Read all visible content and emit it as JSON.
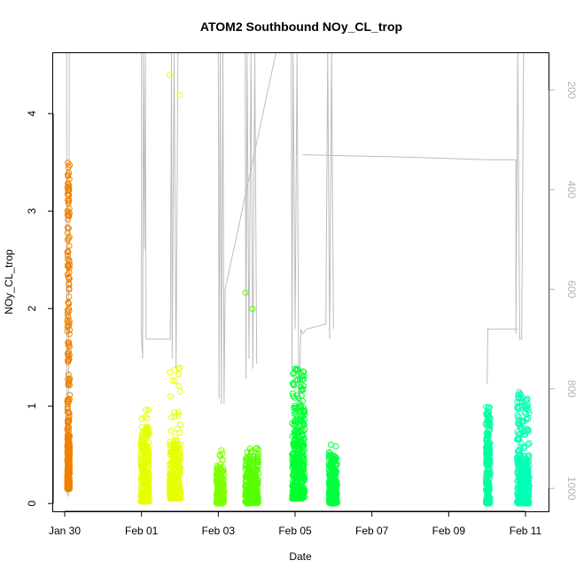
{
  "chart_data": {
    "type": "scatter",
    "title": "ATOM2 Southbound NOy_CL_trop",
    "xlabel": "Date",
    "ylabel": "NOy_CL_trop",
    "x_unit": "days since Jan 28 00:00",
    "xlim": [
      1.7,
      14.6
    ],
    "ylim": [
      -0.08,
      4.62
    ],
    "y_ticks": [
      "0",
      "1",
      "2",
      "3",
      "4"
    ],
    "x_ticks": [
      {
        "label": "Jan 30",
        "x": 2
      },
      {
        "label": "Feb 01",
        "x": 4
      },
      {
        "label": "Feb 03",
        "x": 6
      },
      {
        "label": "Feb 05",
        "x": 8
      },
      {
        "label": "Feb 07",
        "x": 10
      },
      {
        "label": "Feb 09",
        "x": 12
      },
      {
        "label": "Feb 11",
        "x": 14
      }
    ],
    "y2_axis": {
      "label": "",
      "reversed": true,
      "lim": [
        1046,
        126
      ],
      "ticks": [
        "200",
        "400",
        "600",
        "800",
        "1000"
      ]
    },
    "series": [
      {
        "name": "",
        "color": "#f08000",
        "x_start": 2.07,
        "x_end": 2.13,
        "clusters": [
          [
            0.15,
            0.6,
            260
          ],
          [
            0.5,
            3.55,
            180
          ]
        ]
      },
      {
        "name": "",
        "color": "#e6ff00",
        "x_start": 3.98,
        "x_end": 4.2,
        "clusters": [
          [
            0.02,
            0.8,
            260
          ],
          [
            0.6,
            1.05,
            14
          ]
        ]
      },
      {
        "name": "",
        "color": "#e6ff00",
        "x_start": 4.73,
        "x_end": 5.02,
        "clusters": [
          [
            0.05,
            0.6,
            220
          ],
          [
            0.6,
            1.4,
            30
          ],
          [
            4.05,
            4.45,
            2
          ]
        ]
      },
      {
        "name": "",
        "color": "#7fff00",
        "x_start": 5.95,
        "x_end": 6.15,
        "clusters": [
          [
            0.0,
            0.35,
            200
          ],
          [
            0.35,
            0.55,
            16
          ]
        ]
      },
      {
        "name": "",
        "color": "#55ff00",
        "x_start": 6.7,
        "x_end": 7.05,
        "clusters": [
          [
            0.0,
            0.45,
            230
          ],
          [
            0.45,
            0.62,
            20
          ],
          [
            1.8,
            2.5,
            2
          ]
        ]
      },
      {
        "name": "",
        "color": "#00ff30",
        "x_start": 7.92,
        "x_end": 8.25,
        "clusters": [
          [
            0.05,
            0.6,
            240
          ],
          [
            0.6,
            1.39,
            120
          ]
        ]
      },
      {
        "name": "",
        "color": "#00ff40",
        "x_start": 8.88,
        "x_end": 9.1,
        "clusters": [
          [
            0.0,
            0.5,
            200
          ],
          [
            0.5,
            0.62,
            4
          ]
        ]
      },
      {
        "name": "",
        "color": "#00ffa0",
        "x_start": 12.97,
        "x_end": 13.08,
        "clusters": [
          [
            0.0,
            0.4,
            90
          ],
          [
            0.4,
            1.0,
            120
          ]
        ]
      },
      {
        "name": "",
        "color": "#00ffb4",
        "x_start": 13.78,
        "x_end": 14.1,
        "clusters": [
          [
            0.0,
            0.3,
            180
          ],
          [
            0.3,
            1.15,
            140
          ]
        ]
      }
    ],
    "altitude_trace": {
      "color": "#bdbdbd",
      "segments": [
        [
          [
            2.05,
            126
          ],
          [
            2.05,
            220
          ],
          [
            2.06,
            1010
          ],
          [
            2.1,
            1015
          ],
          [
            2.12,
            126
          ]
        ],
        [
          [
            4.0,
            126
          ],
          [
            4.0,
            700
          ],
          [
            4.03,
            740
          ],
          [
            4.05,
            126
          ],
          [
            4.08,
            520
          ],
          [
            4.1,
            126
          ],
          [
            4.12,
            700
          ],
          [
            4.5,
            700
          ],
          [
            4.75,
            700
          ],
          [
            4.78,
            126
          ],
          [
            4.8,
            740
          ],
          [
            4.85,
            126
          ],
          [
            4.9,
            760
          ],
          [
            4.95,
            126
          ],
          [
            5.0,
            126
          ]
        ],
        [
          [
            6.0,
            126
          ],
          [
            6.02,
            820
          ],
          [
            6.05,
            126
          ],
          [
            6.08,
            830
          ],
          [
            6.12,
            126
          ],
          [
            6.15,
            830
          ],
          [
            6.18,
            600
          ],
          [
            7.5,
            126
          ]
        ],
        [
          [
            6.7,
            126
          ],
          [
            6.72,
            780
          ],
          [
            6.75,
            126
          ],
          [
            6.8,
            740
          ],
          [
            6.85,
            126
          ],
          [
            6.9,
            760
          ],
          [
            6.95,
            126
          ],
          [
            7.0,
            750
          ]
        ],
        [
          [
            7.9,
            126
          ],
          [
            7.92,
            760
          ],
          [
            7.95,
            126
          ],
          [
            8.0,
            680
          ],
          [
            8.05,
            126
          ],
          [
            8.1,
            850
          ],
          [
            8.15,
            680
          ],
          [
            8.2,
            690
          ],
          [
            8.3,
            680
          ],
          [
            8.8,
            670
          ],
          [
            8.85,
            126
          ],
          [
            8.9,
            700
          ],
          [
            8.95,
            126
          ],
          [
            9.0,
            680
          ]
        ],
        [
          [
            8.2,
            330
          ],
          [
            11.0,
            335
          ],
          [
            13.0,
            340
          ],
          [
            13.75,
            340
          ],
          [
            13.75,
            690
          ],
          [
            13.8,
            126
          ],
          [
            13.85,
            700
          ],
          [
            13.9,
            700
          ],
          [
            13.95,
            126
          ]
        ],
        [
          [
            13.0,
            790
          ],
          [
            13.02,
            680
          ],
          [
            13.3,
            680
          ],
          [
            13.8,
            680
          ]
        ]
      ]
    }
  }
}
